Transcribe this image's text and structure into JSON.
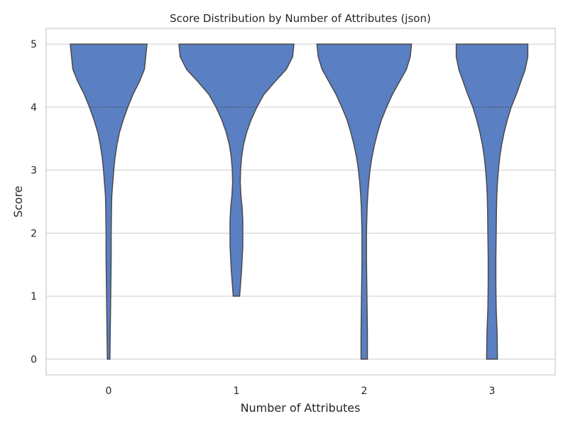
{
  "chart_data": {
    "type": "violin",
    "title": "Score Distribution by Number of Attributes (json)",
    "xlabel": "Number of Attributes",
    "ylabel": "Score",
    "categories": [
      "0",
      "1",
      "2",
      "3"
    ],
    "yticks": [
      "0",
      "1",
      "2",
      "3",
      "4",
      "5"
    ],
    "ylim": [
      -0.25,
      5.25
    ],
    "grid": true,
    "fill_color": "#5a7fc2",
    "edge_color": "#4a4a4a",
    "grid_color": "#cccccc",
    "violins": [
      {
        "category": "0",
        "min": 0,
        "max": 5,
        "quartiles": [
          4,
          5
        ],
        "profile": [
          [
            5.0,
            0.6
          ],
          [
            4.8,
            0.58
          ],
          [
            4.6,
            0.56
          ],
          [
            4.4,
            0.48
          ],
          [
            4.2,
            0.38
          ],
          [
            4.0,
            0.3
          ],
          [
            3.8,
            0.23
          ],
          [
            3.6,
            0.17
          ],
          [
            3.4,
            0.13
          ],
          [
            3.2,
            0.1
          ],
          [
            3.0,
            0.08
          ],
          [
            2.8,
            0.065
          ],
          [
            2.6,
            0.05
          ],
          [
            2.4,
            0.045
          ],
          [
            2.0,
            0.04
          ],
          [
            1.6,
            0.04
          ],
          [
            1.2,
            0.035
          ],
          [
            0.8,
            0.03
          ],
          [
            0.4,
            0.025
          ],
          [
            0.0,
            0.02
          ]
        ]
      },
      {
        "category": "1",
        "min": 1,
        "max": 5,
        "quartiles": [
          4,
          5
        ],
        "profile": [
          [
            5.0,
            0.9
          ],
          [
            4.8,
            0.88
          ],
          [
            4.6,
            0.78
          ],
          [
            4.4,
            0.6
          ],
          [
            4.2,
            0.43
          ],
          [
            4.0,
            0.32
          ],
          [
            3.8,
            0.23
          ],
          [
            3.6,
            0.16
          ],
          [
            3.4,
            0.11
          ],
          [
            3.2,
            0.08
          ],
          [
            3.0,
            0.065
          ],
          [
            2.8,
            0.06
          ],
          [
            2.6,
            0.07
          ],
          [
            2.4,
            0.09
          ],
          [
            2.2,
            0.1
          ],
          [
            2.0,
            0.1
          ],
          [
            1.8,
            0.1
          ],
          [
            1.6,
            0.09
          ],
          [
            1.4,
            0.08
          ],
          [
            1.2,
            0.065
          ],
          [
            1.0,
            0.05
          ]
        ]
      },
      {
        "category": "2",
        "min": 0,
        "max": 5,
        "quartiles": [
          5,
          5
        ],
        "profile": [
          [
            5.0,
            0.74
          ],
          [
            4.8,
            0.72
          ],
          [
            4.6,
            0.66
          ],
          [
            4.4,
            0.55
          ],
          [
            4.2,
            0.44
          ],
          [
            4.0,
            0.35
          ],
          [
            3.8,
            0.27
          ],
          [
            3.6,
            0.21
          ],
          [
            3.4,
            0.16
          ],
          [
            3.2,
            0.12
          ],
          [
            3.0,
            0.09
          ],
          [
            2.8,
            0.07
          ],
          [
            2.6,
            0.055
          ],
          [
            2.4,
            0.045
          ],
          [
            2.0,
            0.035
          ],
          [
            1.6,
            0.035
          ],
          [
            1.2,
            0.04
          ],
          [
            0.8,
            0.045
          ],
          [
            0.4,
            0.05
          ],
          [
            0.0,
            0.05
          ]
        ]
      },
      {
        "category": "3",
        "min": 0,
        "max": 5,
        "quartiles": [
          4,
          5
        ],
        "profile": [
          [
            5.0,
            0.56
          ],
          [
            4.8,
            0.56
          ],
          [
            4.6,
            0.52
          ],
          [
            4.4,
            0.45
          ],
          [
            4.2,
            0.38
          ],
          [
            4.0,
            0.3
          ],
          [
            3.8,
            0.24
          ],
          [
            3.6,
            0.19
          ],
          [
            3.4,
            0.15
          ],
          [
            3.2,
            0.12
          ],
          [
            3.0,
            0.1
          ],
          [
            2.8,
            0.085
          ],
          [
            2.6,
            0.075
          ],
          [
            2.4,
            0.07
          ],
          [
            2.0,
            0.065
          ],
          [
            1.6,
            0.06
          ],
          [
            1.2,
            0.06
          ],
          [
            0.8,
            0.065
          ],
          [
            0.4,
            0.08
          ],
          [
            0.0,
            0.085
          ]
        ]
      }
    ]
  }
}
